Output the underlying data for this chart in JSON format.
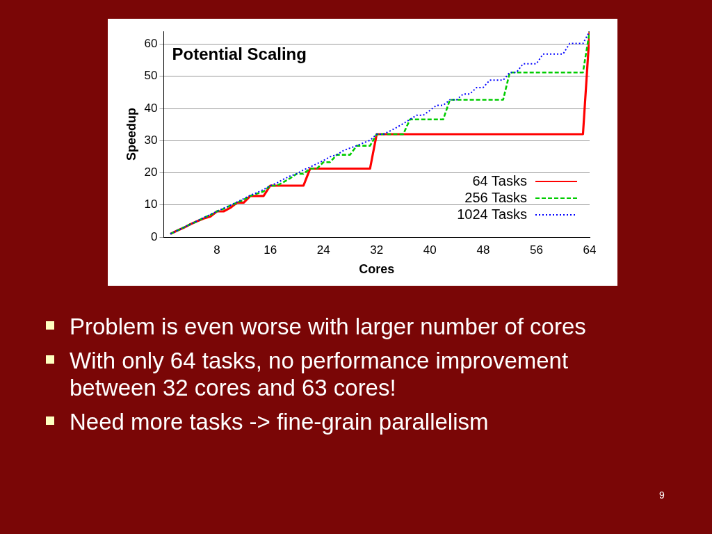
{
  "chart_data": {
    "type": "line",
    "title": "Potential Scaling",
    "xlabel": "Cores",
    "ylabel": "Speedup",
    "x": [
      1,
      2,
      3,
      4,
      5,
      6,
      7,
      8,
      9,
      10,
      11,
      12,
      13,
      14,
      15,
      16,
      17,
      18,
      19,
      20,
      21,
      22,
      23,
      24,
      25,
      26,
      27,
      28,
      29,
      30,
      31,
      32,
      33,
      34,
      35,
      36,
      37,
      38,
      39,
      40,
      41,
      42,
      43,
      44,
      45,
      46,
      47,
      48,
      49,
      50,
      51,
      52,
      53,
      54,
      55,
      56,
      57,
      58,
      59,
      60,
      61,
      62,
      63,
      64
    ],
    "series": [
      {
        "name": "64 Tasks",
        "color": "#ff0000",
        "line_style": "solid",
        "values": [
          1,
          2,
          2.9,
          4,
          4.9,
          5.8,
          6.4,
          8,
          8,
          9.1,
          10.7,
          10.7,
          12.8,
          12.8,
          12.8,
          16,
          16,
          16,
          16,
          16,
          16,
          21.3,
          21.3,
          21.3,
          21.3,
          21.3,
          21.3,
          21.3,
          21.3,
          21.3,
          21.3,
          32,
          32,
          32,
          32,
          32,
          32,
          32,
          32,
          32,
          32,
          32,
          32,
          32,
          32,
          32,
          32,
          32,
          32,
          32,
          32,
          32,
          32,
          32,
          32,
          32,
          32,
          32,
          32,
          32,
          32,
          32,
          32,
          64
        ]
      },
      {
        "name": "256 Tasks",
        "color": "#00cc00",
        "line_style": "dashed",
        "values": [
          1,
          2,
          3.0,
          4,
          4.9,
          6.0,
          6.9,
          8,
          8.8,
          9.8,
          10.7,
          11.6,
          12.8,
          13.5,
          14.2,
          16,
          16,
          17.1,
          18.3,
          19.7,
          19.7,
          21.3,
          21.3,
          23.3,
          23.3,
          25.6,
          25.6,
          25.6,
          28.4,
          28.4,
          28.4,
          32,
          32,
          32,
          32,
          32,
          36.6,
          36.6,
          36.6,
          36.6,
          36.6,
          36.6,
          42.7,
          42.7,
          42.7,
          42.7,
          42.7,
          42.7,
          42.7,
          42.7,
          42.7,
          51.2,
          51.2,
          51.2,
          51.2,
          51.2,
          51.2,
          51.2,
          51.2,
          51.2,
          51.2,
          51.2,
          51.2,
          64
        ]
      },
      {
        "name": "1024 Tasks",
        "color": "#0000ff",
        "line_style": "dotted",
        "values": [
          1,
          2,
          3.0,
          4,
          5.0,
          6.0,
          7.0,
          8,
          9.0,
          9.9,
          10.9,
          11.9,
          13.0,
          13.8,
          14.8,
          16,
          16.8,
          18.0,
          19.0,
          19.7,
          20.9,
          21.8,
          22.8,
          23.8,
          25.0,
          25.6,
          26.9,
          27.7,
          28.4,
          29.3,
          30.1,
          32,
          32,
          33.0,
          34.1,
          35.3,
          36.6,
          37.9,
          37.9,
          39.4,
          41.0,
          41.0,
          42.7,
          42.7,
          44.5,
          44.5,
          46.5,
          46.5,
          48.8,
          48.8,
          48.8,
          51.2,
          51.2,
          53.9,
          53.9,
          53.9,
          56.9,
          56.9,
          56.9,
          56.9,
          60.2,
          60.2,
          60.2,
          64
        ]
      }
    ],
    "xlim": [
      0,
      64
    ],
    "xticks": [
      8,
      16,
      24,
      32,
      40,
      48,
      56,
      64
    ],
    "ylim": [
      0,
      64
    ],
    "yticks": [
      0,
      10,
      20,
      30,
      40,
      50,
      60
    ],
    "grid": "y",
    "legend": "bottom right",
    "marker": "none",
    "annotations": [
      "Problem is even worse with larger number of cores",
      "With only 64 tasks, no performance improvement between 32 cores and 63 cores!",
      "Need more tasks -> fine-grain parallelism",
      "9"
    ]
  }
}
